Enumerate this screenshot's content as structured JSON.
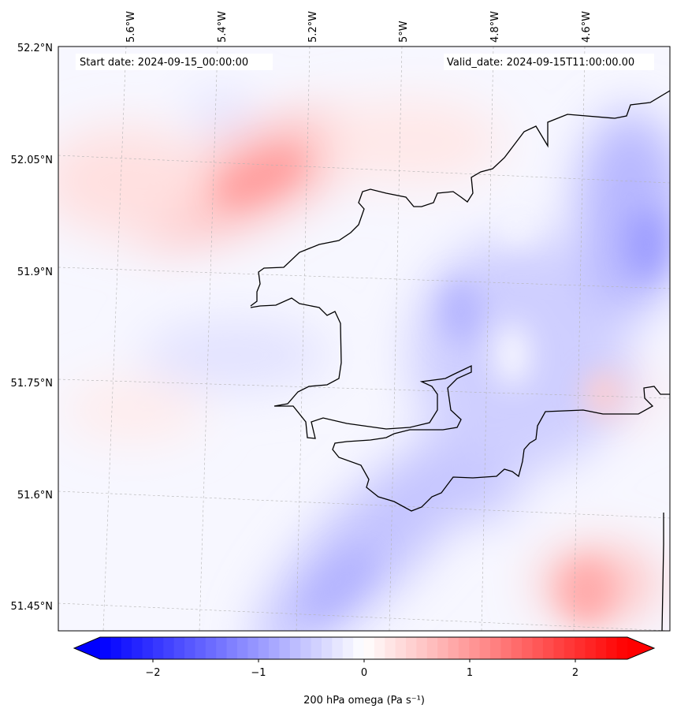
{
  "map": {
    "start_label": "Start date: 2024-09-15_00:00:00",
    "valid_label": "Valid_date: 2024-09-15T11:00:00.00",
    "lon_labels": [
      "5.6°W",
      "5.4°W",
      "5.2°W",
      "5°W",
      "4.8°W",
      "4.6°W"
    ],
    "lat_labels": [
      "52.2°N",
      "52.05°N",
      "51.9°N",
      "51.75°N",
      "51.6°N",
      "51.45°N"
    ],
    "lon_range": [
      -5.7,
      -4.42
    ],
    "lat_range": [
      51.42,
      52.2
    ],
    "projection": "Lambert-like (slightly rotated graticule)",
    "gridlines": true,
    "colors": {
      "negative": "#0000ff",
      "zero": "#ffffff",
      "positive": "#ff0000",
      "coast": "#000000"
    }
  },
  "colorbar": {
    "label": "200 hPa omega (Pa s⁻¹)",
    "ticks": [
      "−2",
      "−1",
      "0",
      "1",
      "2"
    ],
    "range": [
      -2.5,
      2.5
    ],
    "extend": "both",
    "colormap": "bwr"
  },
  "chart_data": {
    "type": "heatmap",
    "variable": "200 hPa omega",
    "units": "Pa s⁻¹",
    "vmin": -2.5,
    "vmax": 2.5,
    "features": [
      {
        "kind": "max",
        "lon": -5.32,
        "lat": 52.03,
        "value": 0.9
      },
      {
        "kind": "max",
        "lon": -4.5,
        "lat": 51.42,
        "value": 0.7
      },
      {
        "kind": "min",
        "lon": -4.45,
        "lat": 51.95,
        "value": -0.8
      },
      {
        "kind": "min",
        "lon": -5.05,
        "lat": 51.5,
        "value": -0.5
      },
      {
        "kind": "min",
        "lon": -4.78,
        "lat": 51.8,
        "value": -0.5
      },
      {
        "kind": "max",
        "lon": -4.6,
        "lat": 51.73,
        "value": 0.3
      }
    ]
  }
}
